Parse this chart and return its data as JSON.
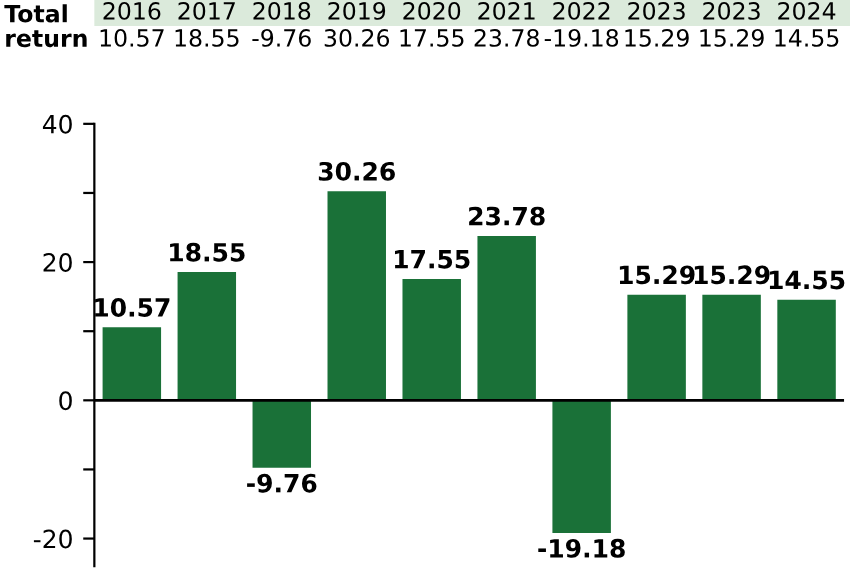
{
  "chart_data": {
    "type": "bar",
    "categories": [
      "2016",
      "2017",
      "2018",
      "2019",
      "2020",
      "2021",
      "2022",
      "2023",
      "2023",
      "2024"
    ],
    "values": [
      10.57,
      18.55,
      -9.76,
      30.26,
      17.55,
      23.78,
      -19.18,
      15.29,
      15.29,
      14.55
    ],
    "color": "#1a7138",
    "annotations": [
      "Total\nreturn",
      "10.57",
      "18.55",
      "-9.76",
      "30.26",
      "17.55",
      "23.78",
      "-19.18",
      "15.29",
      "15.29",
      "14.55"
    ],
    "ylim": [
      -24,
      40
    ],
    "yticks": [
      40,
      {
        "value": 30,
        "label": null
      },
      20,
      {
        "value": 10,
        "label": null
      },
      0,
      {
        "value": -10,
        "label": null
      },
      -20
    ],
    "tick_labels": "y",
    "ref_lines": [
      {
        "axis": "y",
        "value": 0,
        "color": "#000000"
      }
    ],
    "grid": false,
    "data_labels": true
  }
}
